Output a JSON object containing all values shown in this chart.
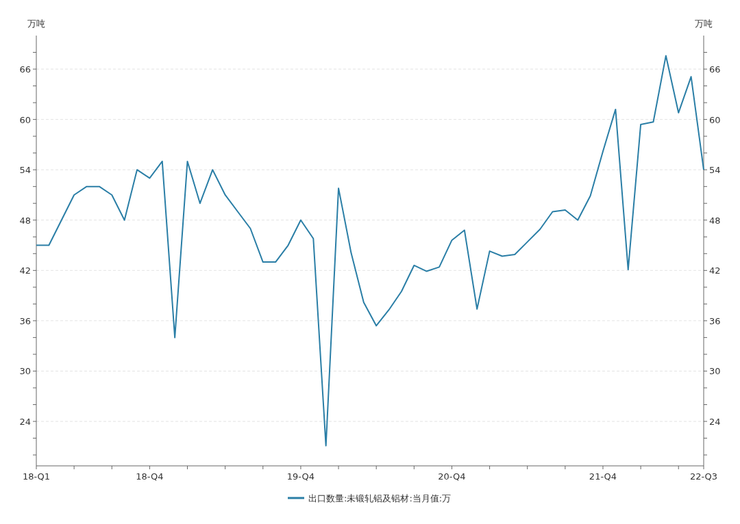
{
  "chart_data": {
    "type": "line",
    "ylabel": "万吨",
    "y2label": "万吨",
    "categories": [
      "18-Q1",
      null,
      null,
      null,
      null,
      null,
      null,
      null,
      null,
      "18-Q4",
      null,
      null,
      null,
      null,
      null,
      null,
      null,
      null,
      null,
      null,
      null,
      "19-Q4",
      null,
      null,
      null,
      null,
      null,
      null,
      null,
      null,
      null,
      null,
      null,
      "20-Q4",
      null,
      null,
      null,
      null,
      null,
      null,
      null,
      null,
      null,
      null,
      null,
      "21-Q4",
      null,
      null,
      null,
      null,
      null,
      null,
      null,
      "22-Q3"
    ],
    "series": [
      {
        "name": "出口数量:未锻轧铝及铝材:当月值:万",
        "color": "#2a7ea6",
        "values": [
          45,
          45,
          48,
          51,
          52,
          52,
          51,
          48,
          54,
          53,
          55,
          34,
          55,
          50,
          54,
          51,
          49,
          47,
          43,
          43,
          45,
          48,
          45.8,
          21.1,
          51.8,
          44.1,
          38.2,
          35.4,
          37.3,
          39.5,
          42.6,
          41.9,
          42.4,
          45.6,
          46.8,
          37.4,
          44.3,
          43.7,
          43.9,
          45.4,
          46.9,
          49.0,
          49.2,
          48.0,
          50.9,
          56.2,
          61.2,
          42.1,
          59.4,
          59.7,
          67.6,
          60.8,
          65.1,
          54.0
        ]
      }
    ],
    "ylim": [
      18.7,
      70
    ],
    "y2lim": [
      18.7,
      70
    ],
    "yticks": [
      {
        "value": 20,
        "label": null
      },
      {
        "value": 22,
        "label": null
      },
      24,
      {
        "value": 26,
        "label": null
      },
      {
        "value": 28,
        "label": null
      },
      30,
      {
        "value": 32,
        "label": null
      },
      {
        "value": 34,
        "label": null
      },
      36,
      {
        "value": 38,
        "label": null
      },
      {
        "value": 40,
        "label": null
      },
      42,
      {
        "value": 44,
        "label": null
      },
      {
        "value": 46,
        "label": null
      },
      48,
      {
        "value": 50,
        "label": null
      },
      {
        "value": 52,
        "label": null
      },
      54,
      {
        "value": 56,
        "label": null
      },
      {
        "value": 58,
        "label": null
      },
      60,
      {
        "value": 62,
        "label": null
      },
      {
        "value": 64,
        "label": null
      },
      66,
      {
        "value": 68,
        "label": null
      }
    ],
    "y2ticks": [
      {
        "value": 20,
        "label": null
      },
      {
        "value": 22,
        "label": null
      },
      24,
      {
        "value": 26,
        "label": null
      },
      {
        "value": 28,
        "label": null
      },
      30,
      {
        "value": 32,
        "label": null
      },
      {
        "value": 34,
        "label": null
      },
      36,
      {
        "value": 38,
        "label": null
      },
      {
        "value": 40,
        "label": null
      },
      42,
      {
        "value": 44,
        "label": null
      },
      {
        "value": 46,
        "label": null
      },
      48,
      {
        "value": 50,
        "label": null
      },
      {
        "value": 52,
        "label": null
      },
      54,
      {
        "value": 56,
        "label": null
      },
      {
        "value": 58,
        "label": null
      },
      60,
      {
        "value": 62,
        "label": null
      },
      {
        "value": 64,
        "label": null
      },
      66,
      {
        "value": 68,
        "label": null
      }
    ],
    "grid": "y",
    "legend": "bottom",
    "marker": "none",
    "line_style": "solid"
  }
}
